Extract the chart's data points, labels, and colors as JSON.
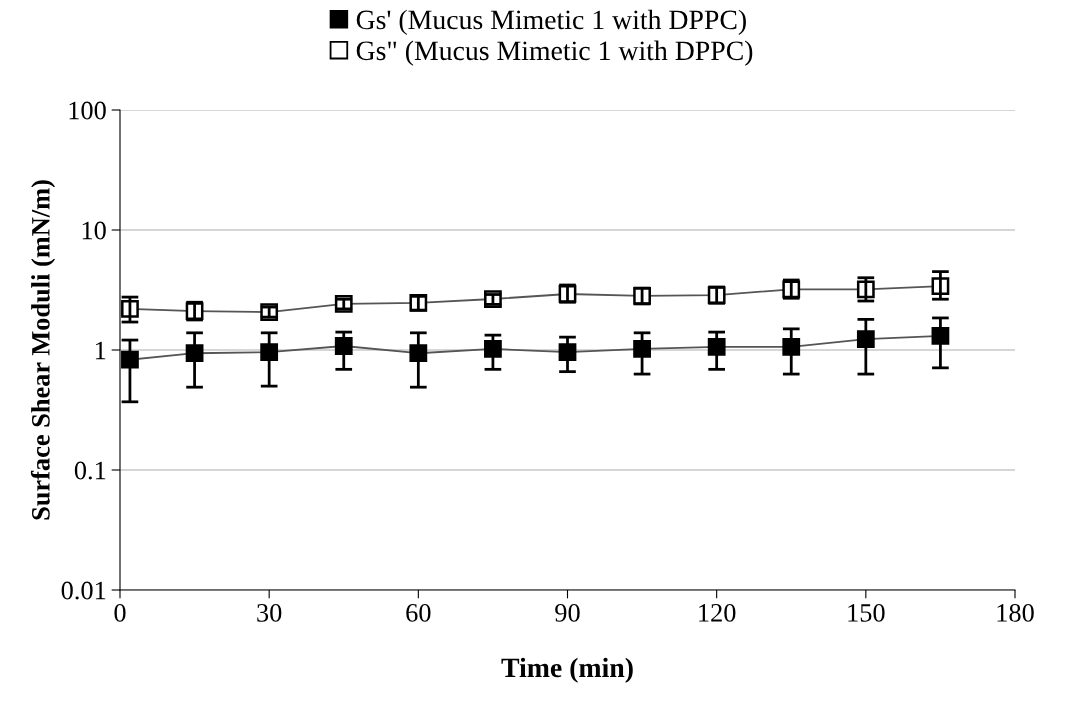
{
  "chart_data": {
    "type": "line",
    "xlabel": "Time (min)",
    "ylabel": "Surface Shear Moduli (mN/m)",
    "log": "y",
    "x": [
      2,
      15,
      30,
      45,
      60,
      75,
      90,
      105,
      120,
      135,
      150,
      165
    ],
    "series": [
      {
        "name": "Gs' (Mucus Mimetic 1 with DPPC)",
        "color": "#000000",
        "marker": "square",
        "values": [
          0.83,
          0.94,
          0.96,
          1.08,
          0.94,
          1.02,
          0.96,
          1.02,
          1.06,
          1.06,
          1.23,
          1.31
        ],
        "errors": [
          [
            0.37,
            1.21
          ],
          [
            0.49,
            1.39
          ],
          [
            0.5,
            1.39
          ],
          [
            0.69,
            1.41
          ],
          [
            0.49,
            1.39
          ],
          [
            0.69,
            1.33
          ],
          [
            0.66,
            1.28
          ],
          [
            0.63,
            1.39
          ],
          [
            0.69,
            1.41
          ],
          [
            0.63,
            1.5
          ],
          [
            0.63,
            1.8
          ],
          [
            0.71,
            1.85
          ]
        ]
      },
      {
        "name": "Gs\" (Mucus Mimetic 1 with DPPC)",
        "color": "#ffffff",
        "marker": "square",
        "values": [
          2.2,
          2.11,
          2.07,
          2.42,
          2.47,
          2.66,
          2.93,
          2.82,
          2.87,
          3.2,
          3.2,
          3.4
        ],
        "errors": [
          [
            1.71,
            2.76
          ],
          [
            1.78,
            2.5
          ],
          [
            1.88,
            2.28
          ],
          [
            2.2,
            2.65
          ],
          [
            2.15,
            2.8
          ],
          [
            2.4,
            2.9
          ],
          [
            2.5,
            3.48
          ],
          [
            2.42,
            3.28
          ],
          [
            2.45,
            3.35
          ],
          [
            2.7,
            3.83
          ],
          [
            2.56,
            4.0
          ],
          [
            2.65,
            4.5
          ]
        ]
      }
    ],
    "xlim": [
      0,
      180
    ],
    "xticks": [
      0,
      30,
      60,
      90,
      120,
      150,
      180
    ],
    "ylim": [
      0.01,
      100
    ],
    "yticks": [
      0.01,
      0.1,
      1,
      10,
      100
    ],
    "grid": "y",
    "legend": "top"
  }
}
